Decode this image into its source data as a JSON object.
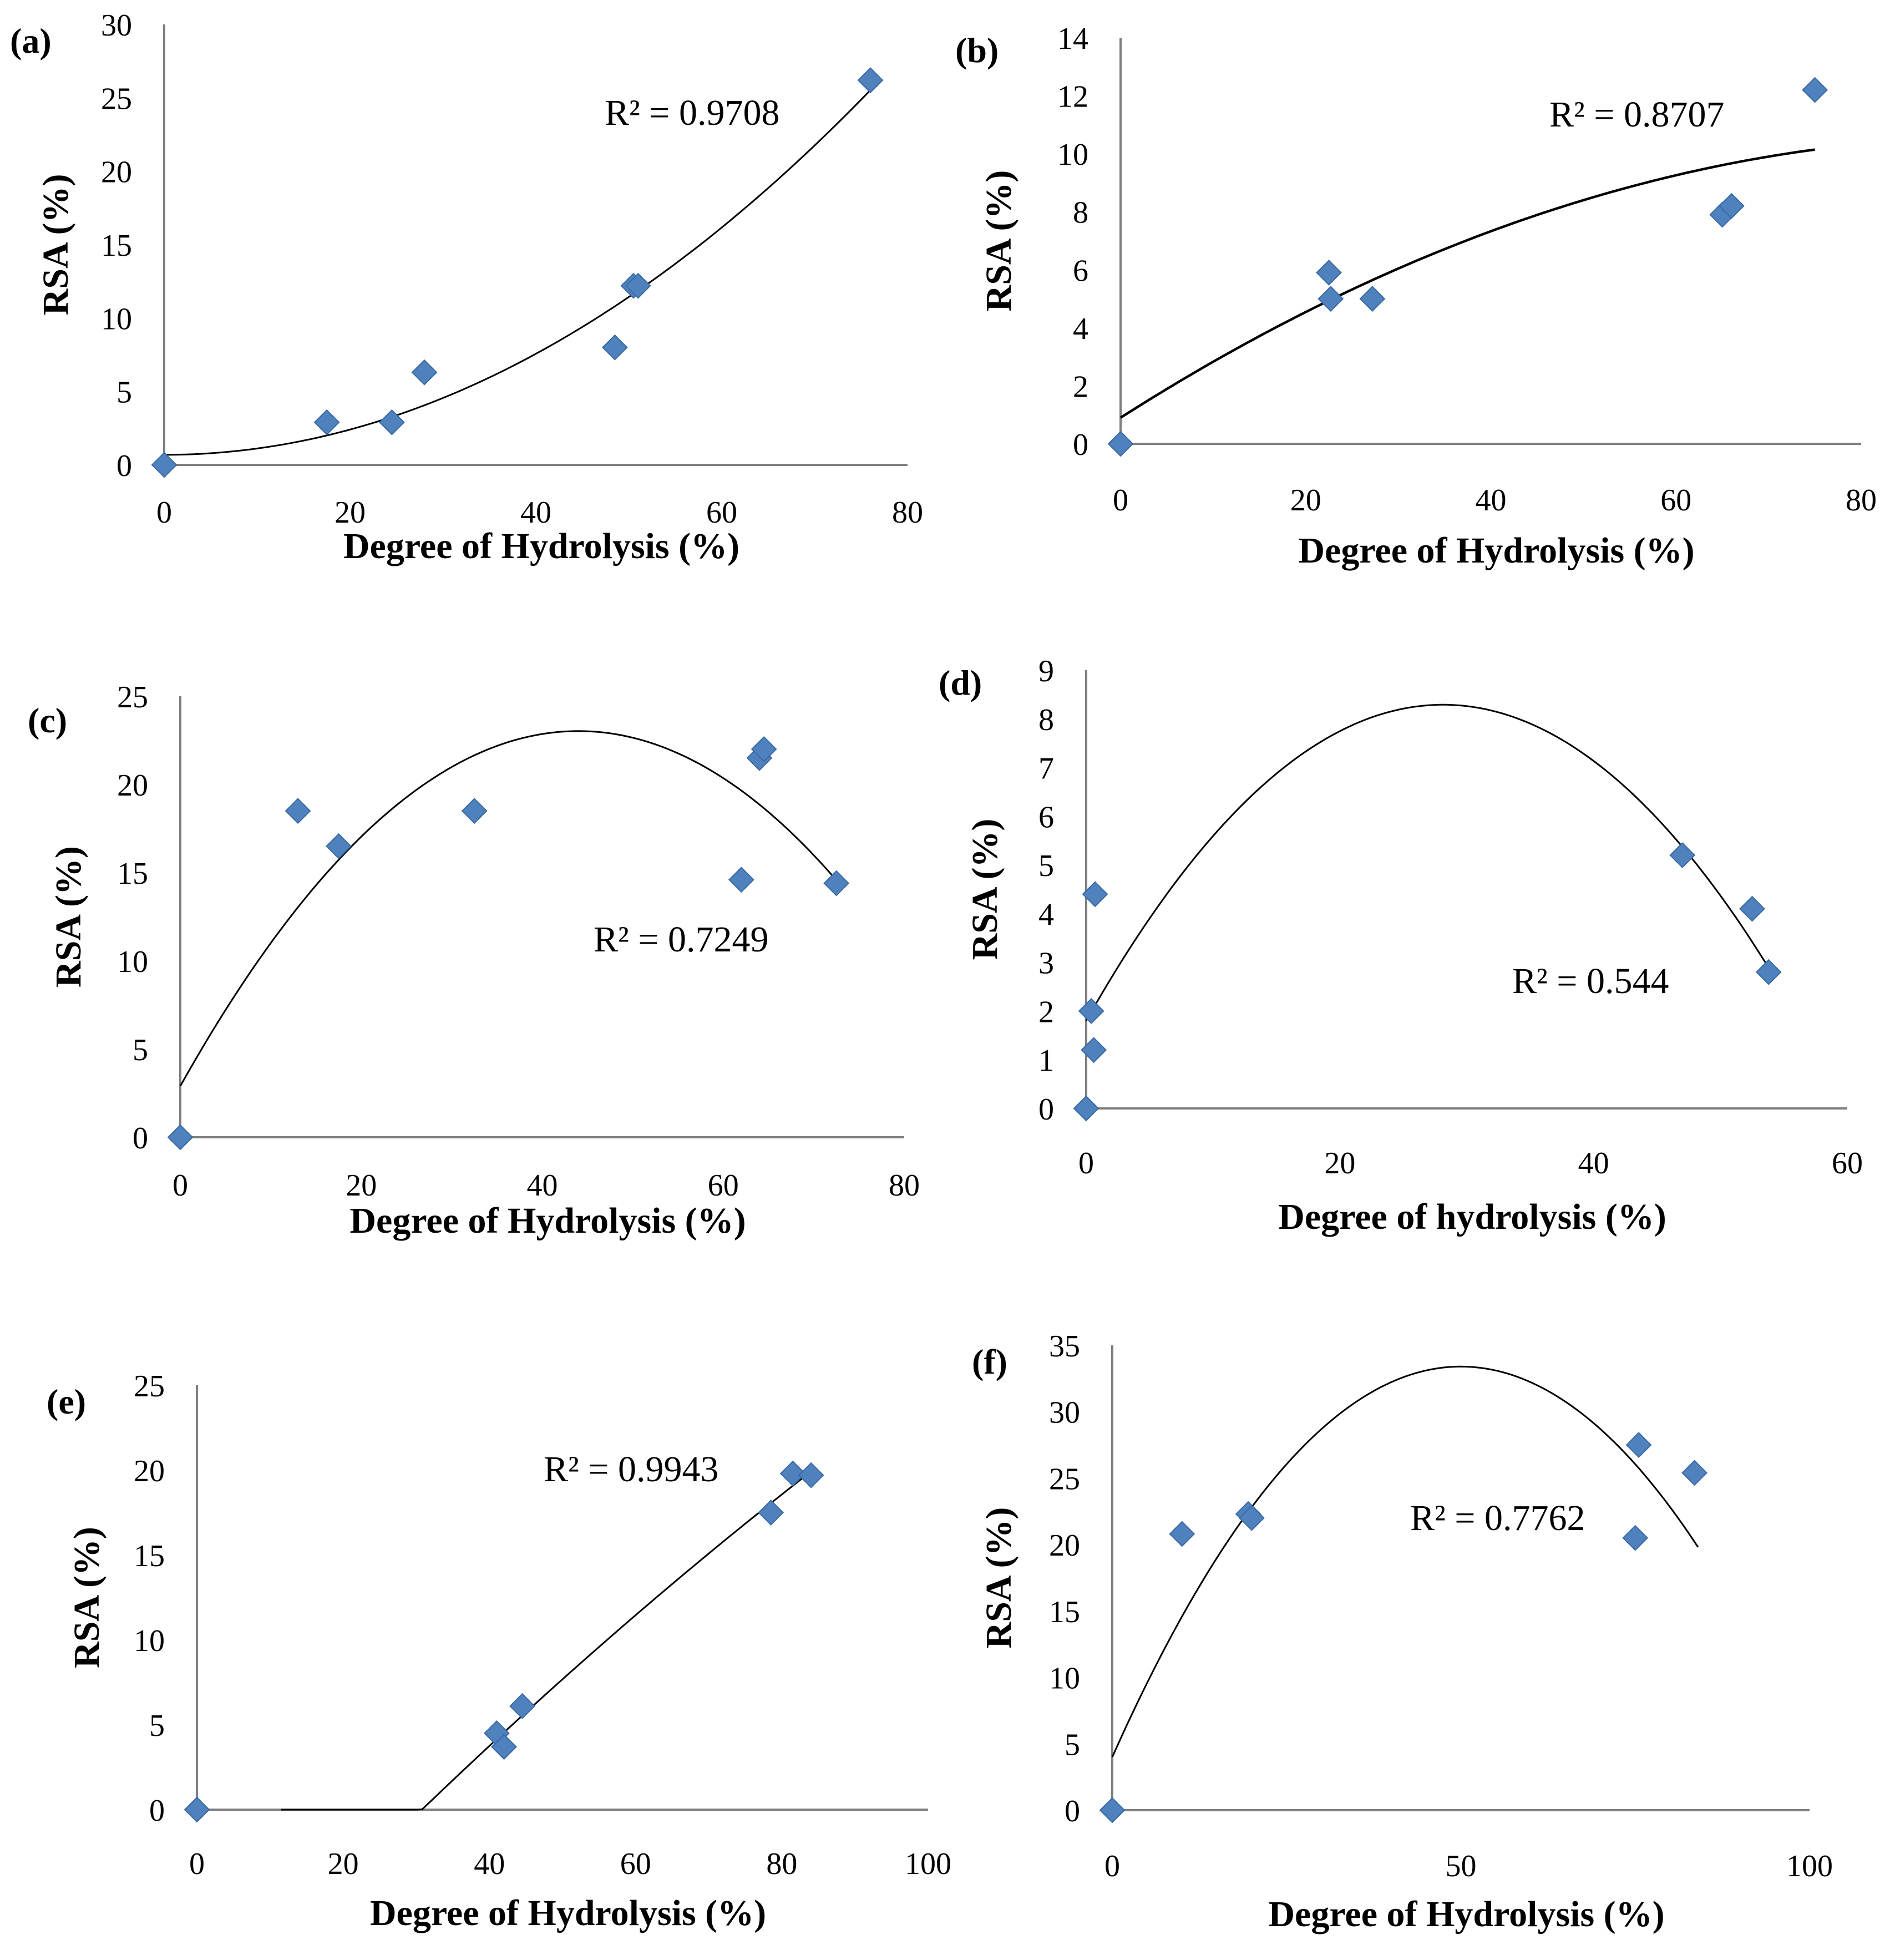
{
  "colors": {
    "marker": "#4f81bd",
    "marker_edge": "#3a6aa5",
    "axis": "#7f7f7f",
    "trend": "#000000"
  },
  "chart_data": [
    {
      "panel": "(a)",
      "type": "scatter",
      "xlabel": "Degree of Hydrolysis  (%)",
      "ylabel": "RSA (%)",
      "xlim": [
        0,
        80
      ],
      "ylim": [
        0,
        30
      ],
      "xticks": [
        "0",
        "20",
        "40",
        "60",
        "80"
      ],
      "yticks": [
        "0",
        "5",
        "10",
        "15",
        "20",
        "25",
        "30"
      ],
      "points": [
        [
          0,
          0
        ],
        [
          17.5,
          2.9
        ],
        [
          24.5,
          2.9
        ],
        [
          28,
          6.3
        ],
        [
          48.5,
          8
        ],
        [
          50.5,
          12.2
        ],
        [
          51,
          12.2
        ],
        [
          76,
          26.2
        ]
      ],
      "trendline": {
        "type": "poly2",
        "r2_label": "R² = 0.9708",
        "coef": [
          0.6867,
          0.0,
          0.0043
        ],
        "x_range": [
          0,
          76
        ]
      },
      "grid": false,
      "legend": "none"
    },
    {
      "panel": "(b)",
      "type": "scatter",
      "xlabel": "Degree of Hydrolysis (%)",
      "ylabel": "RSA (%)",
      "xlim": [
        0,
        80
      ],
      "ylim": [
        0,
        14
      ],
      "xticks": [
        "0",
        "20",
        "40",
        "60",
        "80"
      ],
      "yticks": [
        "0",
        "2",
        "4",
        "6",
        "8",
        "10",
        "12",
        "14"
      ],
      "points": [
        [
          0,
          0
        ],
        [
          22.5,
          5.9
        ],
        [
          22.7,
          5
        ],
        [
          27.2,
          5
        ],
        [
          65,
          7.9
        ],
        [
          66,
          8.2
        ],
        [
          75,
          12.2
        ]
      ],
      "trendline": {
        "type": "poly2",
        "r2_label": "R² = 0.8707",
        "coef": [
          0.9,
          0.2035,
          -0.00107
        ],
        "x_range": [
          0,
          75
        ]
      },
      "grid": false,
      "legend": "none"
    },
    {
      "panel": "(c)",
      "type": "scatter",
      "xlabel": "Degree of Hydrolysis  (%)",
      "ylabel": "RSA (%)",
      "xlim": [
        0,
        80
      ],
      "ylim": [
        0,
        25
      ],
      "xticks": [
        "0",
        "20",
        "40",
        "60",
        "80"
      ],
      "yticks": [
        "0",
        "5",
        "10",
        "15",
        "20",
        "25"
      ],
      "points": [
        [
          0,
          0
        ],
        [
          13,
          18.5
        ],
        [
          17.5,
          16.5
        ],
        [
          32.5,
          18.5
        ],
        [
          62,
          14.6
        ],
        [
          64,
          21.5
        ],
        [
          64.5,
          22
        ],
        [
          72.5,
          14.4
        ]
      ],
      "trendline": {
        "type": "poly2",
        "r2_label": "R² = 0.7249",
        "coef": [
          2.9,
          0.915,
          -0.0104
        ],
        "x_range": [
          0,
          72.5
        ]
      },
      "grid": false,
      "legend": "none"
    },
    {
      "panel": "(d)",
      "type": "scatter",
      "xlabel": "Degree of hydrolysis  (%)",
      "ylabel": "RSA (%)",
      "xlim": [
        0,
        60
      ],
      "ylim": [
        0,
        9
      ],
      "xticks": [
        "0",
        "20",
        "40",
        "60"
      ],
      "yticks": [
        "0",
        "1",
        "2",
        "3",
        "4",
        "5",
        "6",
        "7",
        "8",
        "9"
      ],
      "points": [
        [
          0,
          0
        ],
        [
          0.4,
          2
        ],
        [
          0.6,
          1.2
        ],
        [
          0.7,
          4.4
        ],
        [
          47,
          5.2
        ],
        [
          52.5,
          4.1
        ],
        [
          53.8,
          2.8
        ]
      ],
      "trendline": {
        "type": "poly2",
        "r2_label": "R² = 0.544",
        "coef": [
          1.8,
          0.4614,
          -0.0082
        ],
        "x_range": [
          0,
          54
        ]
      },
      "grid": false,
      "legend": "none"
    },
    {
      "panel": "(e)",
      "type": "scatter",
      "xlabel": "Degree of Hydrolysis  (%)",
      "ylabel": "RSA (%)",
      "xlim": [
        0,
        100
      ],
      "ylim": [
        0,
        25
      ],
      "xticks": [
        "0",
        "20",
        "40",
        "60",
        "80",
        "100"
      ],
      "yticks": [
        "0",
        "5",
        "10",
        "15",
        "20",
        "25"
      ],
      "points": [
        [
          0,
          0
        ],
        [
          41,
          4.5
        ],
        [
          42,
          3.7
        ],
        [
          44.5,
          6.1
        ],
        [
          78.5,
          17.5
        ],
        [
          81.5,
          19.8
        ],
        [
          84,
          19.7
        ]
      ],
      "trendline": {
        "type": "poly2",
        "r2_label": "R² = 0.9943",
        "coef": [
          0.0,
          0.0,
          0.0
        ],
        "x_range": [
          11.5,
          84
        ]
      },
      "grid": false,
      "legend": "none"
    },
    {
      "panel": "(f)",
      "type": "scatter",
      "xlabel": "Degree of Hydrolysis  (%)",
      "ylabel": "RSA (%)",
      "xlim": [
        0,
        100
      ],
      "ylim": [
        0,
        35
      ],
      "xticks": [
        "0",
        "50",
        "100"
      ],
      "yticks": [
        "0",
        "5",
        "10",
        "15",
        "20",
        "25",
        "30",
        "35"
      ],
      "points": [
        [
          0,
          0
        ],
        [
          10,
          20.8
        ],
        [
          19.5,
          22.3
        ],
        [
          20,
          22
        ],
        [
          75,
          20.5
        ],
        [
          75.5,
          27.5
        ],
        [
          83.5,
          25.4
        ]
      ],
      "trendline": {
        "type": "poly2",
        "r2_label": "R² = 0.7762",
        "coef": [
          4.0,
          1.176,
          -0.01176
        ],
        "x_range": [
          0,
          84
        ]
      },
      "grid": false,
      "legend": "none"
    }
  ]
}
